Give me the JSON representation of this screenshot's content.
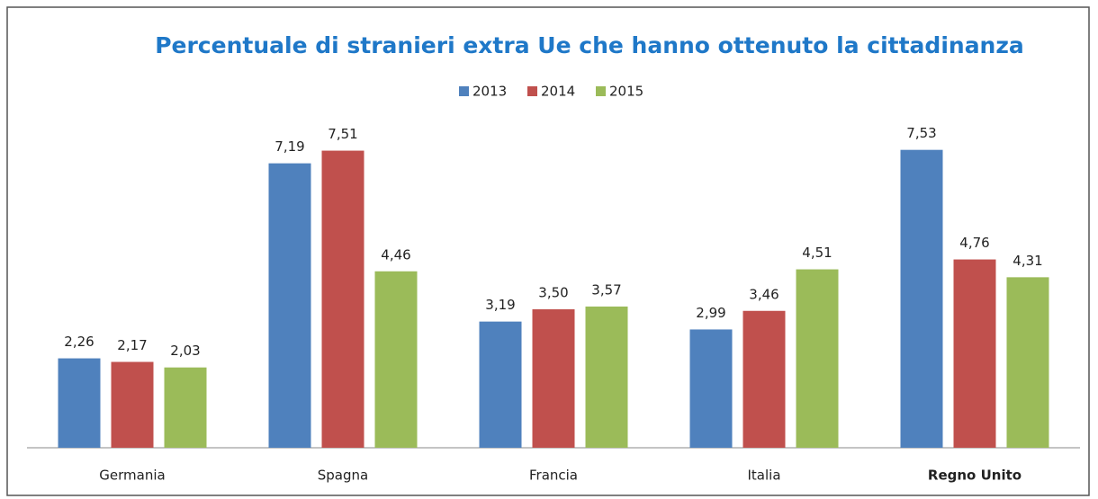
{
  "chart_data": {
    "type": "bar",
    "title": "Percentuale di stranieri extra Ue che hanno ottenuto la cittadinanza",
    "categories": [
      "Germania",
      "Spagna",
      "Francia",
      "Italia",
      "Regno Unito"
    ],
    "series": [
      {
        "name": "2013",
        "color": "#4f81bd",
        "values": [
          2.26,
          7.19,
          3.19,
          2.99,
          7.53
        ],
        "value_labels": [
          "2,26",
          "7,19",
          "3,19",
          "2,99",
          "7,53"
        ]
      },
      {
        "name": "2014",
        "color": "#c0504d",
        "values": [
          2.17,
          7.51,
          3.5,
          3.46,
          4.76
        ],
        "value_labels": [
          "2,17",
          "7,51",
          "3,50",
          "3,46",
          "4,76"
        ]
      },
      {
        "name": "2015",
        "color": "#9bbb59",
        "values": [
          2.03,
          4.46,
          3.57,
          4.51,
          4.31
        ],
        "value_labels": [
          "2,03",
          "4,46",
          "3,57",
          "4,51",
          "4,31"
        ]
      }
    ],
    "legend": "top"
  }
}
